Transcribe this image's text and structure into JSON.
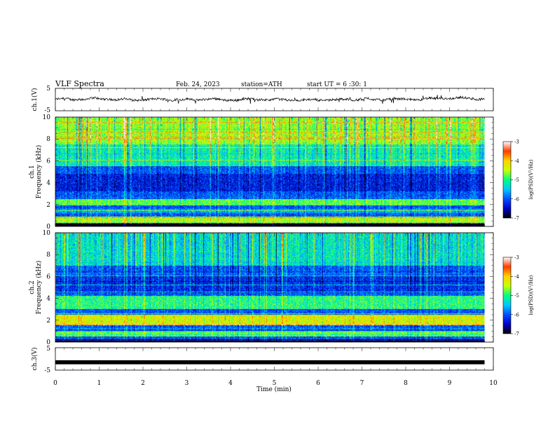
{
  "header": {
    "title": "VLF  Spectra",
    "date": "Feb. 24, 2023",
    "station": "station=ATH",
    "start_ut": "start  UT  =   6  :30: 1"
  },
  "colors": {
    "colormap": [
      "#000000",
      "#0000c8",
      "#0050ff",
      "#00c8ff",
      "#00ff80",
      "#c8ff00",
      "#ffd200",
      "#ff3c00",
      "#ffffff"
    ],
    "trace": "#000000"
  },
  "chart_data": [
    {
      "type": "line",
      "name": "channel-1-waveform",
      "ylabel": "ch.1(V)",
      "xlim": [
        0,
        10
      ],
      "ylim": [
        -5,
        5
      ],
      "yticks": [
        "5",
        "-5"
      ],
      "approx_level_v": 0,
      "approx_spread_v": 1,
      "data_end_min": 9.8
    },
    {
      "type": "heatmap",
      "name": "channel-1-spectrogram",
      "ylabel": "ch.1\nFrequency  (kHz)",
      "xlim": [
        0,
        10
      ],
      "ylim": [
        0,
        10
      ],
      "yticks": [
        "0",
        "2",
        "4",
        "6",
        "8",
        "10"
      ],
      "colorbar": {
        "label": "log(PSD)(V²/Hz)",
        "range": [
          -7,
          -3
        ],
        "ticks": [
          "-3",
          "-4",
          "-5",
          "-6",
          "-7"
        ]
      },
      "data_end_min": 9.8,
      "bands_khz": [
        {
          "f": [
            0.3,
            0.9
          ],
          "level": -4.5
        },
        {
          "f": [
            1.2,
            1.6
          ],
          "level": -5.6
        },
        {
          "f": [
            1.9,
            2.5
          ],
          "level": -4.8
        },
        {
          "f": [
            3.2,
            4.8
          ],
          "level": -6.3
        },
        {
          "f": [
            5.5,
            7.5
          ],
          "level": -5.2
        },
        {
          "f": [
            7.5,
            10.0
          ],
          "level": -4.6
        }
      ]
    },
    {
      "type": "heatmap",
      "name": "channel-2-spectrogram",
      "ylabel": "ch.2\nFrequency  (kHz)",
      "xlim": [
        0,
        10
      ],
      "ylim": [
        0,
        10
      ],
      "yticks": [
        "0",
        "2",
        "4",
        "6",
        "8",
        "10"
      ],
      "colorbar": {
        "label": "log(PSD)(V²/Hz)",
        "range": [
          -7,
          -3
        ],
        "ticks": [
          "-3",
          "-4",
          "-5",
          "-6",
          "-7"
        ]
      },
      "data_end_min": 9.8,
      "bands_khz": [
        {
          "f": [
            0.5,
            1.0
          ],
          "level": -4.8
        },
        {
          "f": [
            1.5,
            2.5
          ],
          "level": -4.3
        },
        {
          "f": [
            3.0,
            4.2
          ],
          "level": -5.0
        },
        {
          "f": [
            4.5,
            6.0
          ],
          "level": -6.2
        },
        {
          "f": [
            7.0,
            10.0
          ],
          "level": -5.3
        }
      ]
    },
    {
      "type": "line",
      "name": "channel-3-waveform",
      "ylabel": "ch.3(V)",
      "xlim": [
        0,
        10
      ],
      "ylim": [
        -5,
        5
      ],
      "yticks": [
        "5",
        "-5"
      ],
      "approx_level_v": -1.5,
      "approx_spread_v": 0.3,
      "data_end_min": 9.8
    },
    {
      "type": "axis",
      "name": "time-axis",
      "xlabel": "Time  (min)",
      "xticks": [
        "0",
        "1",
        "2",
        "3",
        "4",
        "5",
        "6",
        "7",
        "8",
        "9",
        "10"
      ]
    }
  ]
}
